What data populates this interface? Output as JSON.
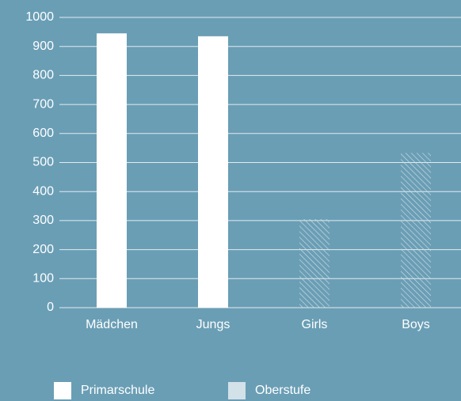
{
  "chart_data": {
    "type": "bar",
    "categories": [
      "Mädchen",
      "Jungs",
      "Girls",
      "Boys"
    ],
    "series": [
      {
        "name": "Primarschule",
        "color": "#ffffff",
        "values": [
          945,
          935,
          null,
          null
        ]
      },
      {
        "name": "Oberstufe",
        "color": "#d3e1e8",
        "pattern": "hatch",
        "values": [
          null,
          null,
          305,
          533
        ]
      }
    ],
    "ylim": [
      0,
      1000
    ],
    "yticks": [
      0,
      100,
      200,
      300,
      400,
      500,
      600,
      700,
      800,
      900,
      1000
    ],
    "grid": true
  }
}
